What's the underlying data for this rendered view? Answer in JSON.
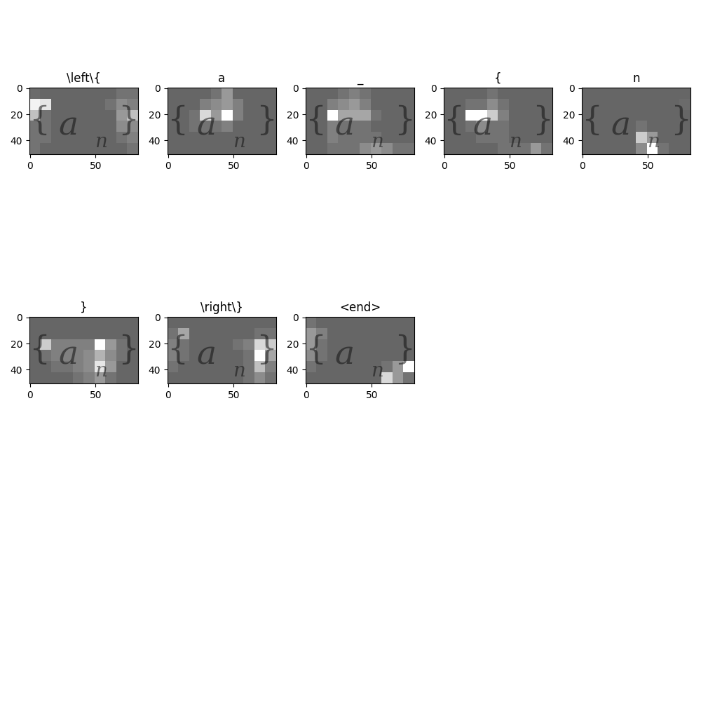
{
  "chart_data": [
    {
      "type": "heatmap",
      "title": "\\left\\{",
      "image_text": [
        "{",
        "a",
        "n",
        "}"
      ],
      "xlim": [
        -0.5,
        82.5
      ],
      "ylim": [
        50.5,
        -0.5
      ],
      "xticks": [
        0,
        50
      ],
      "yticks": [
        0,
        20,
        40
      ],
      "clim": [
        0,
        1
      ],
      "cells": [
        [
          0.42,
          0.4,
          0.4,
          0.4,
          0.4,
          0.4,
          0.4,
          0.4,
          0.45,
          0.45
        ],
        [
          0.95,
          0.9,
          0.4,
          0.4,
          0.4,
          0.4,
          0.4,
          0.45,
          0.55,
          0.5
        ],
        [
          0.75,
          0.45,
          0.4,
          0.4,
          0.4,
          0.4,
          0.4,
          0.4,
          0.6,
          0.75
        ],
        [
          0.45,
          0.45,
          0.4,
          0.4,
          0.4,
          0.4,
          0.4,
          0.4,
          0.55,
          0.55
        ],
        [
          0.45,
          0.45,
          0.4,
          0.4,
          0.4,
          0.4,
          0.4,
          0.4,
          0.45,
          0.5
        ],
        [
          0.45,
          0.4,
          0.4,
          0.4,
          0.4,
          0.4,
          0.4,
          0.4,
          0.4,
          0.45
        ]
      ]
    },
    {
      "type": "heatmap",
      "title": "a",
      "image_text": [
        "{",
        "a",
        "n",
        "}"
      ],
      "xlim": [
        -0.5,
        82.5
      ],
      "ylim": [
        50.5,
        -0.5
      ],
      "xticks": [
        0,
        50
      ],
      "yticks": [
        0,
        20,
        40
      ],
      "clim": [
        0,
        1
      ],
      "cells": [
        [
          0.4,
          0.4,
          0.4,
          0.4,
          0.45,
          0.6,
          0.4,
          0.4,
          0.4,
          0.4
        ],
        [
          0.4,
          0.4,
          0.4,
          0.5,
          0.55,
          0.6,
          0.5,
          0.4,
          0.4,
          0.4
        ],
        [
          0.4,
          0.4,
          0.45,
          0.85,
          0.6,
          1.0,
          0.5,
          0.4,
          0.4,
          0.4
        ],
        [
          0.4,
          0.4,
          0.45,
          0.45,
          0.45,
          0.5,
          0.4,
          0.4,
          0.4,
          0.4
        ],
        [
          0.4,
          0.4,
          0.4,
          0.4,
          0.4,
          0.4,
          0.4,
          0.4,
          0.4,
          0.4
        ],
        [
          0.4,
          0.4,
          0.4,
          0.4,
          0.4,
          0.4,
          0.4,
          0.4,
          0.4,
          0.4
        ]
      ]
    },
    {
      "type": "heatmap",
      "title": "_",
      "image_text": [
        "{",
        "a",
        "n",
        "}"
      ],
      "xlim": [
        -0.5,
        82.5
      ],
      "ylim": [
        50.5,
        -0.5
      ],
      "xticks": [
        0,
        50
      ],
      "yticks": [
        0,
        20,
        40
      ],
      "clim": [
        0,
        1
      ],
      "cells": [
        [
          0.4,
          0.4,
          0.4,
          0.45,
          0.5,
          0.45,
          0.4,
          0.4,
          0.4,
          0.4
        ],
        [
          0.4,
          0.4,
          0.5,
          0.55,
          0.6,
          0.5,
          0.4,
          0.4,
          0.4,
          0.4
        ],
        [
          0.4,
          0.4,
          1.0,
          0.65,
          0.65,
          0.65,
          0.45,
          0.4,
          0.4,
          0.4
        ],
        [
          0.4,
          0.4,
          0.5,
          0.45,
          0.45,
          0.45,
          0.4,
          0.4,
          0.4,
          0.4
        ],
        [
          0.4,
          0.4,
          0.5,
          0.45,
          0.45,
          0.45,
          0.45,
          0.4,
          0.4,
          0.4
        ],
        [
          0.4,
          0.4,
          0.45,
          0.45,
          0.45,
          0.55,
          0.6,
          0.55,
          0.45,
          0.45
        ]
      ]
    },
    {
      "type": "heatmap",
      "title": "{",
      "image_text": [
        "{",
        "a",
        "n",
        "}"
      ],
      "xlim": [
        -0.5,
        82.5
      ],
      "ylim": [
        50.5,
        -0.5
      ],
      "xticks": [
        0,
        50
      ],
      "yticks": [
        0,
        20,
        40
      ],
      "clim": [
        0,
        1
      ],
      "cells": [
        [
          0.4,
          0.4,
          0.4,
          0.4,
          0.45,
          0.4,
          0.4,
          0.4,
          0.4,
          0.4
        ],
        [
          0.4,
          0.4,
          0.45,
          0.45,
          0.55,
          0.45,
          0.4,
          0.4,
          0.4,
          0.4
        ],
        [
          0.4,
          0.4,
          1.0,
          1.0,
          0.8,
          0.5,
          0.4,
          0.4,
          0.4,
          0.4
        ],
        [
          0.4,
          0.4,
          0.45,
          0.55,
          0.45,
          0.45,
          0.4,
          0.4,
          0.4,
          0.4
        ],
        [
          0.4,
          0.4,
          0.4,
          0.45,
          0.45,
          0.45,
          0.4,
          0.4,
          0.4,
          0.4
        ],
        [
          0.4,
          0.4,
          0.4,
          0.4,
          0.4,
          0.45,
          0.45,
          0.45,
          0.6,
          0.45
        ]
      ]
    },
    {
      "type": "heatmap",
      "title": "n",
      "image_text": [
        "{",
        "a",
        "n",
        "}"
      ],
      "xlim": [
        -0.5,
        82.5
      ],
      "ylim": [
        50.5,
        -0.5
      ],
      "xticks": [
        0,
        50
      ],
      "yticks": [
        0,
        20,
        40
      ],
      "clim": [
        0,
        1
      ],
      "cells": [
        [
          0.4,
          0.4,
          0.4,
          0.4,
          0.4,
          0.4,
          0.4,
          0.4,
          0.4,
          0.4
        ],
        [
          0.4,
          0.4,
          0.4,
          0.4,
          0.4,
          0.4,
          0.4,
          0.4,
          0.4,
          0.42
        ],
        [
          0.4,
          0.4,
          0.4,
          0.4,
          0.4,
          0.4,
          0.4,
          0.4,
          0.4,
          0.4
        ],
        [
          0.4,
          0.4,
          0.4,
          0.4,
          0.4,
          0.45,
          0.4,
          0.4,
          0.4,
          0.4
        ],
        [
          0.4,
          0.4,
          0.4,
          0.4,
          0.4,
          0.8,
          0.6,
          0.4,
          0.4,
          0.4
        ],
        [
          0.4,
          0.4,
          0.4,
          0.4,
          0.4,
          0.55,
          1.0,
          0.45,
          0.4,
          0.4
        ]
      ]
    },
    {
      "type": "heatmap",
      "title": "}",
      "image_text": [
        "{",
        "a",
        "n",
        "}"
      ],
      "xlim": [
        -0.5,
        82.5
      ],
      "ylim": [
        50.5,
        -0.5
      ],
      "xticks": [
        0,
        50
      ],
      "yticks": [
        0,
        20,
        40
      ],
      "clim": [
        0,
        1
      ],
      "cells": [
        [
          0.4,
          0.4,
          0.4,
          0.4,
          0.4,
          0.4,
          0.4,
          0.4,
          0.4,
          0.4
        ],
        [
          0.4,
          0.4,
          0.4,
          0.4,
          0.4,
          0.4,
          0.4,
          0.4,
          0.4,
          0.4
        ],
        [
          0.4,
          0.8,
          0.5,
          0.5,
          0.5,
          0.5,
          1.0,
          0.6,
          0.45,
          0.4
        ],
        [
          0.4,
          0.45,
          0.5,
          0.5,
          0.5,
          0.55,
          0.7,
          0.55,
          0.45,
          0.4
        ],
        [
          0.4,
          0.4,
          0.45,
          0.45,
          0.5,
          0.55,
          0.9,
          0.6,
          0.4,
          0.4
        ],
        [
          0.4,
          0.4,
          0.4,
          0.4,
          0.45,
          0.5,
          0.6,
          0.45,
          0.4,
          0.4
        ]
      ]
    },
    {
      "type": "heatmap",
      "title": "\\right\\}",
      "image_text": [
        "{",
        "a",
        "n",
        "}"
      ],
      "xlim": [
        -0.5,
        82.5
      ],
      "ylim": [
        50.5,
        -0.5
      ],
      "xticks": [
        0,
        50
      ],
      "yticks": [
        0,
        20,
        40
      ],
      "clim": [
        0,
        1
      ],
      "cells": [
        [
          0.4,
          0.4,
          0.4,
          0.4,
          0.4,
          0.4,
          0.4,
          0.4,
          0.4,
          0.4
        ],
        [
          0.45,
          0.65,
          0.4,
          0.4,
          0.4,
          0.4,
          0.4,
          0.4,
          0.45,
          0.45
        ],
        [
          0.5,
          0.45,
          0.4,
          0.4,
          0.4,
          0.4,
          0.45,
          0.5,
          0.85,
          0.8
        ],
        [
          0.5,
          0.45,
          0.4,
          0.4,
          0.4,
          0.4,
          0.4,
          0.45,
          1.0,
          0.65
        ],
        [
          0.45,
          0.4,
          0.4,
          0.4,
          0.4,
          0.4,
          0.4,
          0.45,
          0.75,
          0.5
        ],
        [
          0.4,
          0.4,
          0.4,
          0.4,
          0.4,
          0.4,
          0.4,
          0.45,
          0.55,
          0.45
        ]
      ]
    },
    {
      "type": "heatmap",
      "title": "<end>",
      "image_text": [
        "{",
        "a",
        "n",
        "}"
      ],
      "xlim": [
        -0.5,
        82.5
      ],
      "ylim": [
        50.5,
        -0.5
      ],
      "xticks": [
        0,
        50
      ],
      "yticks": [
        0,
        20,
        40
      ],
      "clim": [
        0,
        1
      ],
      "cells": [
        [
          0.45,
          0.4,
          0.4,
          0.4,
          0.4,
          0.4,
          0.4,
          0.4,
          0.4,
          0.4
        ],
        [
          0.6,
          0.5,
          0.4,
          0.4,
          0.4,
          0.4,
          0.4,
          0.4,
          0.4,
          0.4
        ],
        [
          0.6,
          0.45,
          0.4,
          0.4,
          0.4,
          0.4,
          0.4,
          0.4,
          0.4,
          0.4
        ],
        [
          0.55,
          0.45,
          0.4,
          0.4,
          0.4,
          0.4,
          0.4,
          0.4,
          0.4,
          0.4
        ],
        [
          0.45,
          0.4,
          0.4,
          0.4,
          0.4,
          0.4,
          0.4,
          0.45,
          0.6,
          1.0
        ],
        [
          0.4,
          0.4,
          0.4,
          0.4,
          0.4,
          0.4,
          0.4,
          0.85,
          0.6,
          0.45
        ]
      ]
    }
  ]
}
